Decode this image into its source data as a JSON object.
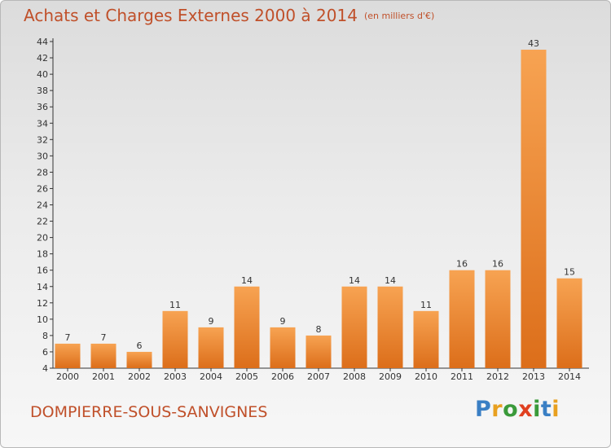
{
  "title": "Achats et Charges Externes 2000 à 2014",
  "unit": "(en milliers d'€)",
  "commune": "DOMPIERRE-SOUS-SANVIGNES",
  "brand": {
    "letters": [
      {
        "char": "P",
        "color": "#3a7fc4"
      },
      {
        "char": "r",
        "color": "#e8a020"
      },
      {
        "char": "o",
        "color": "#3a9a3a"
      },
      {
        "char": "x",
        "color": "#e04020"
      },
      {
        "char": "i",
        "color": "#3a9a3a"
      },
      {
        "char": "t",
        "color": "#3a7fc4"
      },
      {
        "char": "i",
        "color": "#e8a020"
      }
    ]
  },
  "chart_data": {
    "type": "bar",
    "title": "Achats et Charges Externes 2000 à 2014",
    "subtitle": "(en milliers d'€)",
    "categories": [
      "2000",
      "2001",
      "2002",
      "2003",
      "2004",
      "2005",
      "2006",
      "2007",
      "2008",
      "2009",
      "2010",
      "2011",
      "2012",
      "2013",
      "2014"
    ],
    "values": [
      7,
      7,
      6,
      11,
      9,
      14,
      9,
      8,
      14,
      14,
      11,
      16,
      16,
      43,
      15
    ],
    "ylim": [
      4,
      44
    ],
    "yticks": [
      4,
      6,
      8,
      10,
      12,
      14,
      16,
      18,
      20,
      22,
      24,
      26,
      28,
      30,
      32,
      34,
      36,
      38,
      40,
      42,
      44
    ],
    "grid": false,
    "bar_color": "#f08a30",
    "xlabel": "",
    "ylabel": ""
  }
}
